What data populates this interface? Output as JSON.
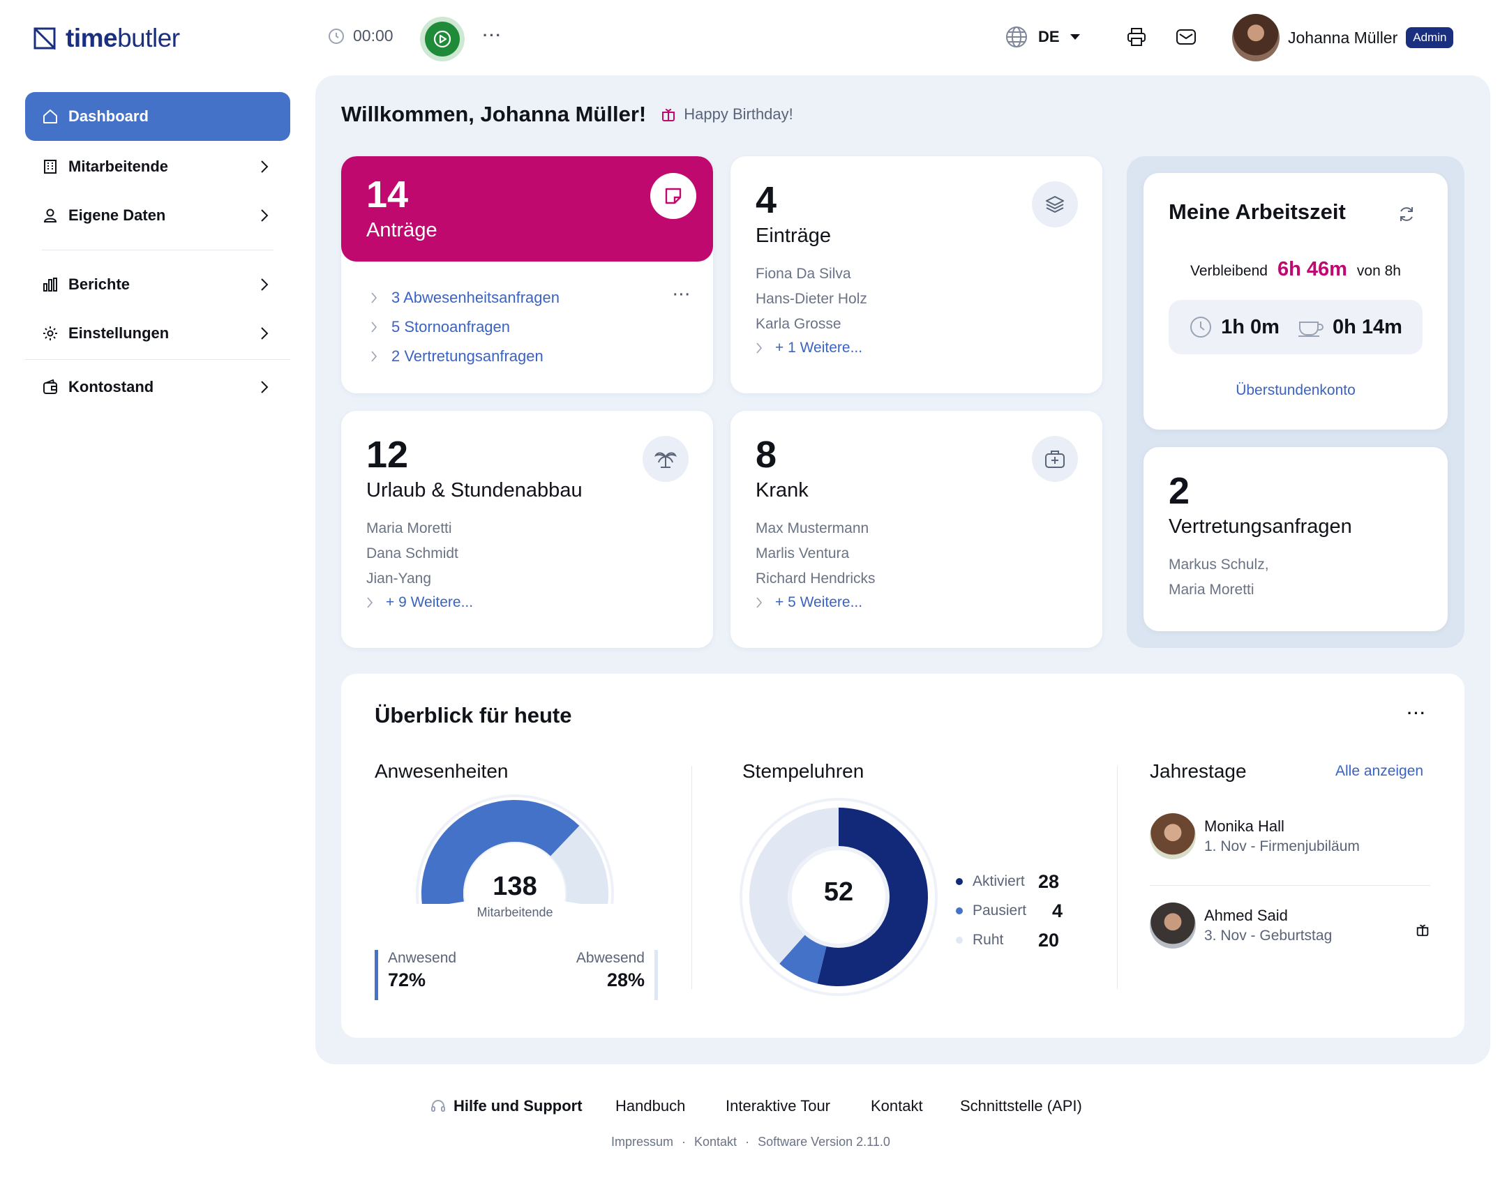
{
  "app": {
    "logo_bold": "time",
    "logo_light": "butler"
  },
  "topbar": {
    "timer": "00:00",
    "language": "DE",
    "user_name": "Johanna Müller",
    "user_badge": "Admin",
    "more": "···"
  },
  "sidebar": {
    "items": [
      {
        "label": "Dashboard"
      },
      {
        "label": "Mitarbeitende"
      },
      {
        "label": "Eigene Daten"
      },
      {
        "label": "Berichte"
      },
      {
        "label": "Einstellungen"
      },
      {
        "label": "Kontostand"
      }
    ]
  },
  "welcome": {
    "title": "Willkommen, Johanna Müller!",
    "birthday": "Happy Birthday!"
  },
  "cards": {
    "antraege": {
      "count": "14",
      "title": "Anträge",
      "links": [
        "3 Abwesenheitsanfragen",
        "5 Stornoanfragen",
        "2 Vertretungsanfragen"
      ],
      "more": "···"
    },
    "eintraege": {
      "count": "4",
      "title": "Einträge",
      "names": [
        "Fiona Da Silva",
        "Hans-Dieter Holz",
        "Karla Grosse"
      ],
      "more": "+ 1 Weitere..."
    },
    "urlaub": {
      "count": "12",
      "title": "Urlaub & Stundenabbau",
      "names": [
        "Maria Moretti",
        "Dana Schmidt",
        "Jian-Yang"
      ],
      "more": "+ 9 Weitere..."
    },
    "krank": {
      "count": "8",
      "title": "Krank",
      "names": [
        "Max Mustermann",
        "Marlis Ventura",
        "Richard Hendricks"
      ],
      "more": "+ 5 Weitere..."
    },
    "vertretung": {
      "count": "2",
      "title": "Vertretungsanfragen",
      "names": [
        "Markus Schulz,",
        "Maria Moretti"
      ]
    }
  },
  "arbeitszeit": {
    "title": "Meine Arbeitszeit",
    "remaining_label": "Verbleibend",
    "remaining": "6h 46m",
    "of": "von 8h",
    "work": "1h 0m",
    "break": "0h 14m",
    "link": "Überstundenkonto"
  },
  "overview": {
    "title": "Überblick für heute",
    "more": "···",
    "anwesenheiten": {
      "title": "Anwesenheiten",
      "total": "138",
      "total_label": "Mitarbeitende",
      "present_label": "Anwesend",
      "present": "72%",
      "absent_label": "Abwesend",
      "absent": "28%",
      "present_fraction": 0.72
    },
    "stempeluhren": {
      "title": "Stempeluhren",
      "total": "52",
      "legend": [
        {
          "label": "Aktiviert",
          "value": "28",
          "color": "#12297a"
        },
        {
          "label": "Pausiert",
          "value": "4",
          "color": "#4372c8"
        },
        {
          "label": "Ruht",
          "value": "20",
          "color": "#e1e8f3"
        }
      ]
    },
    "jahrestage": {
      "title": "Jahrestage",
      "link": "Alle anzeigen",
      "items": [
        {
          "name": "Monika Hall",
          "detail": "1. Nov - Firmenjubiläum"
        },
        {
          "name": "Ahmed Said",
          "detail": "3. Nov - Geburtstag"
        }
      ]
    }
  },
  "footer": {
    "links": [
      "Hilfe und Support",
      "Handbuch",
      "Interaktive Tour",
      "Kontakt",
      "Schnittstelle (API)"
    ],
    "sub": [
      "Impressum",
      "·",
      "Kontakt",
      "·",
      "Software Version 2.11.0"
    ]
  },
  "colors": {
    "brand": "#1a2f80",
    "accent": "#4372c8",
    "antraege": "#c0096f",
    "dark_blue": "#12297a"
  }
}
